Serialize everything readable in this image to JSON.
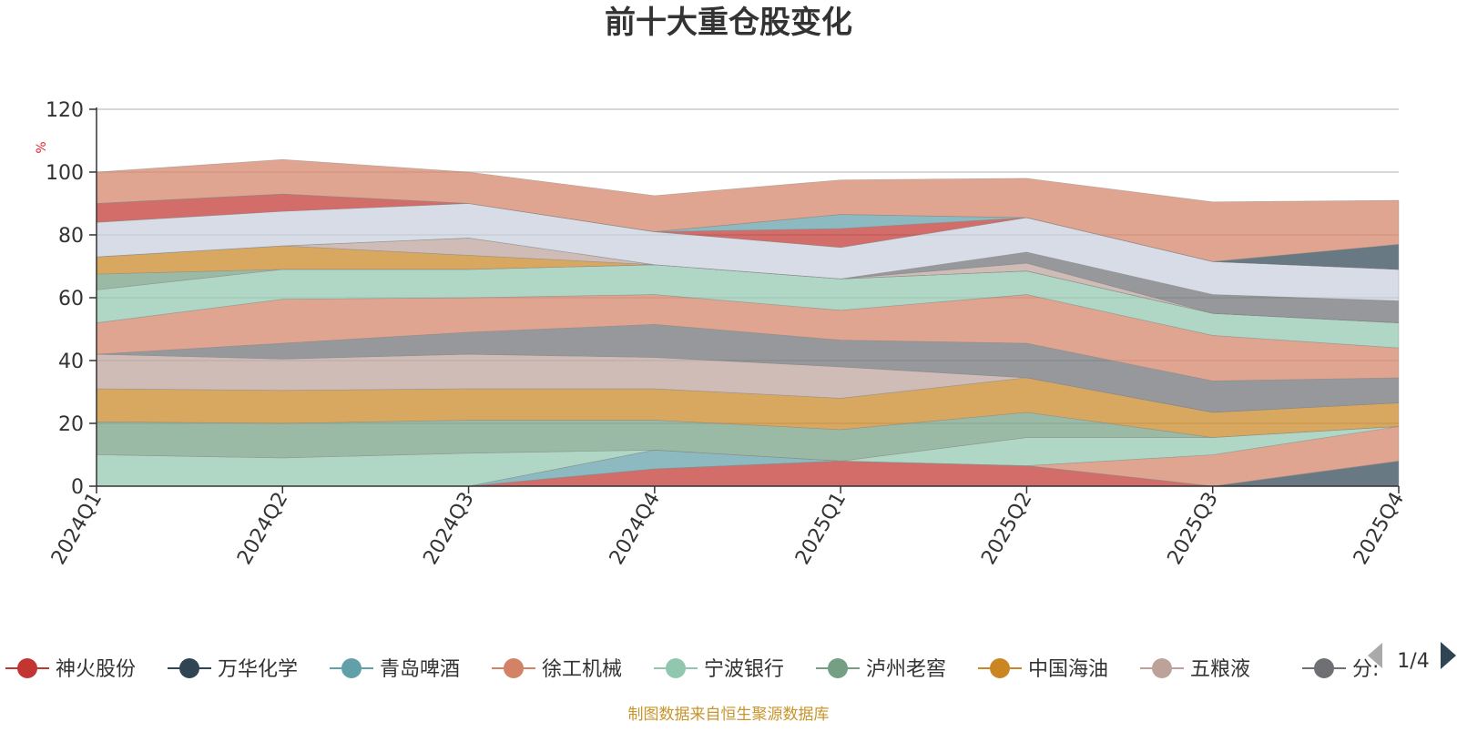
{
  "chart_data": {
    "type": "area",
    "title": "前十大重仓股变化",
    "ylabel": "%",
    "ylim": [
      0,
      120
    ],
    "yticks": [
      0,
      20,
      40,
      60,
      80,
      100,
      120
    ],
    "categories": [
      "2024Q1",
      "2024Q2",
      "2024Q3",
      "2024Q4",
      "2025Q1",
      "2025Q2",
      "2025Q3",
      "2025Q4"
    ],
    "grid": true,
    "series": [
      {
        "name": "神火股份",
        "color": "#c23531",
        "values": [
          0,
          0,
          0,
          5.5,
          8,
          6.5,
          0,
          0
        ]
      },
      {
        "name": "万华化学",
        "color": "#2f4554",
        "values": [
          0,
          0,
          0,
          0,
          0,
          0,
          0,
          8
        ]
      },
      {
        "name": "青岛啤酒",
        "color": "#61a0a8",
        "values": [
          0,
          0,
          0,
          6,
          0,
          0,
          0,
          0
        ]
      },
      {
        "name": "徐工机械",
        "color": "#d48265",
        "values": [
          0,
          0,
          0,
          0,
          0,
          0,
          10,
          11
        ]
      },
      {
        "name": "宁波银行",
        "color": "#91c7ae",
        "values": [
          10,
          9,
          10.5,
          0,
          0,
          9,
          5.5,
          0
        ]
      },
      {
        "name": "泸州老窖",
        "color": "#749f83",
        "values": [
          10.5,
          11,
          10.5,
          9.5,
          10,
          8,
          0,
          0
        ]
      },
      {
        "name": "中国海油",
        "color": "#ca8622",
        "values": [
          10.5,
          10.5,
          10,
          10,
          10,
          11,
          8,
          7.5
        ]
      },
      {
        "name": "五粮液",
        "color": "#bda29a",
        "values": [
          11,
          10,
          11,
          10,
          10,
          0,
          0,
          0
        ]
      },
      {
        "name": "分众传媒",
        "color": "#6e7074",
        "values": [
          0,
          5,
          7,
          10.5,
          8.5,
          11,
          10,
          8
        ]
      }
    ],
    "legend": {
      "position": "bottom",
      "page": "1/4",
      "visible_items": [
        "神火股份",
        "万华化学",
        "青岛啤酒",
        "徐工机械",
        "宁波银行",
        "泸州老窖",
        "中国海油",
        "五粮液",
        "分众传媒"
      ],
      "truncated_label": "分:"
    },
    "upper_layers": [
      {
        "color": "#d48265",
        "values": [
          10,
          14,
          11,
          9.5,
          9.5,
          15.5,
          14.5,
          9.5
        ]
      },
      {
        "color": "#91c7ae",
        "values": [
          10.5,
          9.5,
          9,
          9.5,
          10,
          7.5,
          7,
          8
        ]
      },
      {
        "color": "#749f83",
        "values": [
          5,
          0,
          0,
          0,
          0,
          0,
          0,
          0
        ]
      },
      {
        "color": "#ca8622",
        "values": [
          5.5,
          7.5,
          4.5,
          0,
          0,
          0,
          0,
          0
        ]
      },
      {
        "color": "#bda29a",
        "values": [
          0,
          0,
          5.5,
          0,
          0,
          2.5,
          0,
          0
        ]
      },
      {
        "color": "#6e7074",
        "values": [
          0,
          0,
          0,
          0,
          0,
          3.5,
          6,
          7
        ]
      },
      {
        "color": "#c8cfdc",
        "values": [
          11,
          11,
          11,
          10.5,
          10,
          11,
          10.5,
          10
        ]
      },
      {
        "color": "#c23531",
        "values": [
          6,
          5.5,
          0,
          0,
          6,
          0,
          0,
          0
        ]
      },
      {
        "color": "#61a0a8",
        "values": [
          0,
          0,
          0,
          0,
          4.5,
          0,
          0,
          0
        ]
      },
      {
        "color": "#2f4554",
        "values": [
          0,
          0,
          0,
          0,
          0,
          0,
          0,
          8
        ]
      },
      {
        "color": "#d48265",
        "values": [
          10,
          11,
          10,
          11.5,
          11,
          12.5,
          19,
          14
        ]
      }
    ]
  },
  "legend_nav": {
    "page": "1/4",
    "prev_icon": "triangle-left-icon",
    "next_icon": "triangle-right-icon"
  },
  "footer": {
    "source": "制图数据来自恒生聚源数据库",
    "color": "#c8942c"
  }
}
